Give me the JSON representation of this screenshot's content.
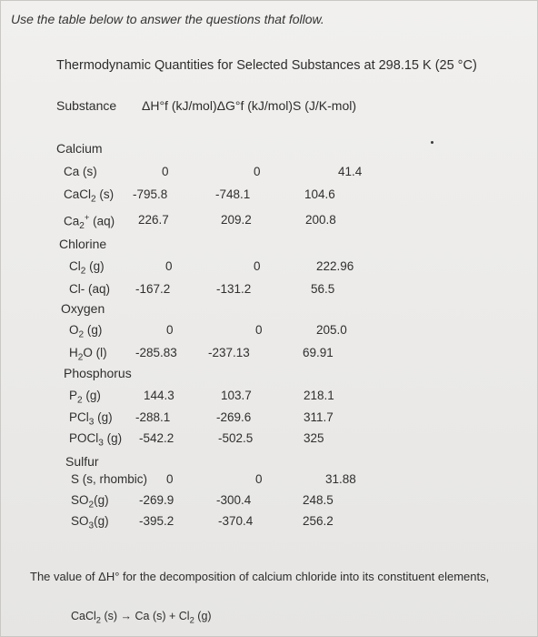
{
  "instruction": "Use the table below to answer the questions that follow.",
  "table": {
    "title": "Thermodynamic Quantities for Selected Substances at 298.15 K (25 °C)",
    "headers": [
      "Substance",
      "ΔH°f (kJ/mol)ΔG°f (kJ/mol)S (J/K-mol)"
    ],
    "rows": [
      {
        "kind": "group",
        "label": "Calcium"
      },
      {
        "kind": "row",
        "substance": "Ca (s)",
        "dH": "0",
        "dG": "0",
        "S": "41.4"
      },
      {
        "kind": "row",
        "substance": "CaCl2 (s)",
        "dH": "-795.8",
        "dG": "-748.1",
        "S": "104.6"
      },
      {
        "kind": "row",
        "substance": "Ca2+ (aq)",
        "dH": "226.7",
        "dG": "209.2",
        "S": "200.8"
      },
      {
        "kind": "group",
        "label": "Chlorine"
      },
      {
        "kind": "row",
        "substance": "Cl2 (g)",
        "dH": "0",
        "dG": "0",
        "S": "222.96"
      },
      {
        "kind": "row",
        "substance": "Cl- (aq)",
        "dH": "-167.2",
        "dG": "-131.2",
        "S": "56.5"
      },
      {
        "kind": "group",
        "label": "Oxygen"
      },
      {
        "kind": "row",
        "substance": "O2 (g)",
        "dH": "0",
        "dG": "0",
        "S": "205.0"
      },
      {
        "kind": "row",
        "substance": "H2O (l)",
        "dH": "-285.83",
        "dG": "-237.13",
        "S": "69.91"
      },
      {
        "kind": "group",
        "label": "Phosphorus"
      },
      {
        "kind": "row",
        "substance": "P2 (g)",
        "dH": "144.3",
        "dG": "103.7",
        "S": "218.1"
      },
      {
        "kind": "row",
        "substance": "PCl3 (g)",
        "dH": "-288.1",
        "dG": "-269.6",
        "S": "311.7"
      },
      {
        "kind": "row",
        "substance": "POCl3 (g)",
        "dH": "-542.2",
        "dG": "-502.5",
        "S": "325"
      },
      {
        "kind": "group",
        "label": "Sulfur"
      },
      {
        "kind": "row",
        "substance": "S (s, rhombic)",
        "dH": "0",
        "dG": "0",
        "S": "31.88"
      },
      {
        "kind": "row",
        "substance": "SO2(g)",
        "dH": "-269.9",
        "dG": "-300.4",
        "S": "248.5"
      },
      {
        "kind": "row",
        "substance": "SO3(g)",
        "dH": "-395.2",
        "dG": "-370.4",
        "S": "256.2"
      }
    ]
  },
  "question": "The value of ΔH° for the decomposition of calcium chloride into its constituent elements,",
  "equation": "CaCl2 (s) → Ca (s) + Cl2 (g)"
}
